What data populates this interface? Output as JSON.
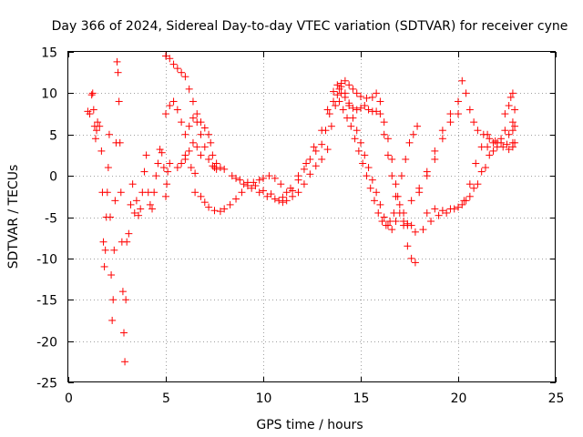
{
  "chart_data": {
    "type": "scatter",
    "title": "Day 366 of 2024, Sidereal Day-to-day VTEC variation (SDTVAR) for receiver cyne",
    "xlabel": "GPS time / hours",
    "ylabel": "SDTVAR / TECUs",
    "xlim": [
      0,
      25
    ],
    "ylim": [
      -25,
      15
    ],
    "x_ticks": [
      0,
      5,
      10,
      15,
      20,
      25
    ],
    "y_ticks": [
      15,
      10,
      5,
      0,
      -5,
      -10,
      -15,
      -20,
      -25
    ],
    "grid": true,
    "marker": "+",
    "series": [
      {
        "name": "SDTVAR",
        "color": "#ff0000",
        "points": [
          [
            1.0,
            7.8
          ],
          [
            1.1,
            7.5
          ],
          [
            1.2,
            9.8
          ],
          [
            1.25,
            10.0
          ],
          [
            1.3,
            8.0
          ],
          [
            1.35,
            6.0
          ],
          [
            1.4,
            4.5
          ],
          [
            1.45,
            5.5
          ],
          [
            1.5,
            6.5
          ],
          [
            1.6,
            6.0
          ],
          [
            1.7,
            3.0
          ],
          [
            1.75,
            -2.0
          ],
          [
            1.8,
            -8.0
          ],
          [
            1.85,
            -11.0
          ],
          [
            1.9,
            -9.0
          ],
          [
            1.95,
            -5.0
          ],
          [
            2.0,
            -2.0
          ],
          [
            2.05,
            1.0
          ],
          [
            2.1,
            5.0
          ],
          [
            2.15,
            -5.0
          ],
          [
            2.2,
            -12.0
          ],
          [
            2.25,
            -17.5
          ],
          [
            2.3,
            -15.0
          ],
          [
            2.35,
            -9.0
          ],
          [
            2.4,
            -3.0
          ],
          [
            2.45,
            4.0
          ],
          [
            2.5,
            13.8
          ],
          [
            2.55,
            12.5
          ],
          [
            2.6,
            9.0
          ],
          [
            2.65,
            4.0
          ],
          [
            2.7,
            -2.0
          ],
          [
            2.75,
            -8.0
          ],
          [
            2.8,
            -14.0
          ],
          [
            2.85,
            -19.0
          ],
          [
            2.9,
            -22.5
          ],
          [
            2.95,
            -15.0
          ],
          [
            3.0,
            -8.0
          ],
          [
            3.1,
            -7.0
          ],
          [
            3.2,
            -3.5
          ],
          [
            3.3,
            -1.0
          ],
          [
            3.4,
            -4.5
          ],
          [
            3.5,
            -3.0
          ],
          [
            3.6,
            -4.8
          ],
          [
            3.7,
            -4.0
          ],
          [
            3.8,
            -2.0
          ],
          [
            3.9,
            0.5
          ],
          [
            4.0,
            2.5
          ],
          [
            4.1,
            -2.0
          ],
          [
            4.2,
            -3.5
          ],
          [
            4.3,
            -4.0
          ],
          [
            4.4,
            -2.0
          ],
          [
            4.5,
            0.0
          ],
          [
            4.6,
            1.5
          ],
          [
            4.7,
            3.2
          ],
          [
            4.8,
            2.8
          ],
          [
            4.9,
            1.0
          ],
          [
            5.0,
            -2.5
          ],
          [
            5.05,
            -1.0
          ],
          [
            5.1,
            0.5
          ],
          [
            5.2,
            1.5
          ],
          [
            5.0,
            14.5
          ],
          [
            5.2,
            14.2
          ],
          [
            5.4,
            13.5
          ],
          [
            5.6,
            13.0
          ],
          [
            5.8,
            12.5
          ],
          [
            6.0,
            12.0
          ],
          [
            6.2,
            10.5
          ],
          [
            6.4,
            9.0
          ],
          [
            6.6,
            7.5
          ],
          [
            6.8,
            6.5
          ],
          [
            7.0,
            5.8
          ],
          [
            7.2,
            5.0
          ],
          [
            7.3,
            4.0
          ],
          [
            7.4,
            2.5
          ],
          [
            7.5,
            1.0
          ],
          [
            5.0,
            7.5
          ],
          [
            5.2,
            8.5
          ],
          [
            5.4,
            9.0
          ],
          [
            5.6,
            8.0
          ],
          [
            5.8,
            6.5
          ],
          [
            6.0,
            5.0
          ],
          [
            6.2,
            6.0
          ],
          [
            6.4,
            7.0
          ],
          [
            6.6,
            6.5
          ],
          [
            6.8,
            5.0
          ],
          [
            7.0,
            3.5
          ],
          [
            7.2,
            2.0
          ],
          [
            7.4,
            1.2
          ],
          [
            7.6,
            0.8
          ],
          [
            7.8,
            1.0
          ],
          [
            6.0,
            2.5
          ],
          [
            6.2,
            3.0
          ],
          [
            6.4,
            4.0
          ],
          [
            6.6,
            3.5
          ],
          [
            6.8,
            2.5
          ],
          [
            5.6,
            1.0
          ],
          [
            5.8,
            1.5
          ],
          [
            6.0,
            2.0
          ],
          [
            6.3,
            1.0
          ],
          [
            6.5,
            0.3
          ],
          [
            6.5,
            -2.0
          ],
          [
            6.8,
            -2.5
          ],
          [
            7.0,
            -3.2
          ],
          [
            7.2,
            -3.8
          ],
          [
            7.5,
            -4.2
          ],
          [
            7.8,
            -4.3
          ],
          [
            8.0,
            -4.0
          ],
          [
            8.3,
            -3.5
          ],
          [
            8.6,
            -2.8
          ],
          [
            8.9,
            -2.0
          ],
          [
            9.2,
            -1.2
          ],
          [
            9.5,
            -0.8
          ],
          [
            9.8,
            -0.5
          ],
          [
            10.0,
            -0.3
          ],
          [
            10.3,
            0.0
          ],
          [
            10.6,
            -0.3
          ],
          [
            10.9,
            -1.0
          ],
          [
            11.2,
            -2.0
          ],
          [
            11.5,
            -2.5
          ],
          [
            11.8,
            -2.0
          ],
          [
            12.1,
            -1.0
          ],
          [
            12.4,
            0.2
          ],
          [
            12.7,
            1.2
          ],
          [
            13.0,
            2.0
          ],
          [
            13.3,
            3.2
          ],
          [
            13.5,
            6.0
          ],
          [
            13.7,
            8.5
          ],
          [
            13.9,
            10.5
          ],
          [
            14.0,
            11.2
          ],
          [
            14.2,
            11.5
          ],
          [
            14.4,
            11.0
          ],
          [
            14.6,
            10.5
          ],
          [
            14.8,
            10.0
          ],
          [
            15.0,
            9.6
          ],
          [
            15.3,
            9.4
          ],
          [
            15.6,
            9.5
          ],
          [
            15.8,
            10.0
          ],
          [
            16.0,
            9.0
          ],
          [
            16.2,
            6.5
          ],
          [
            16.4,
            4.5
          ],
          [
            16.6,
            2.0
          ],
          [
            16.8,
            -1.0
          ],
          [
            17.0,
            -3.5
          ],
          [
            17.2,
            -6.0
          ],
          [
            17.4,
            -8.5
          ],
          [
            17.6,
            -10.0
          ],
          [
            17.8,
            -10.5
          ],
          [
            7.6,
            1.5
          ],
          [
            8.0,
            0.8
          ],
          [
            8.4,
            0.0
          ],
          [
            8.8,
            -0.5
          ],
          [
            9.2,
            -0.8
          ],
          [
            9.6,
            -1.2
          ],
          [
            10.0,
            -1.8
          ],
          [
            10.4,
            -2.2
          ],
          [
            10.8,
            -3.0
          ],
          [
            11.0,
            -3.2
          ],
          [
            11.2,
            -3.0
          ],
          [
            11.5,
            -1.8
          ],
          [
            11.8,
            -0.5
          ],
          [
            12.1,
            0.8
          ],
          [
            12.4,
            2.0
          ],
          [
            12.7,
            3.0
          ],
          [
            13.0,
            3.8
          ],
          [
            13.2,
            5.5
          ],
          [
            13.4,
            7.5
          ],
          [
            13.6,
            9.0
          ],
          [
            13.8,
            9.8
          ],
          [
            14.0,
            10.0
          ],
          [
            14.2,
            9.5
          ],
          [
            14.4,
            8.8
          ],
          [
            14.6,
            8.2
          ],
          [
            14.8,
            8.0
          ],
          [
            15.0,
            8.2
          ],
          [
            15.2,
            8.5
          ],
          [
            15.4,
            8.0
          ],
          [
            15.6,
            7.8
          ],
          [
            15.8,
            7.8
          ],
          [
            16.0,
            7.5
          ],
          [
            16.2,
            5.0
          ],
          [
            16.4,
            2.5
          ],
          [
            16.6,
            0.0
          ],
          [
            16.8,
            -2.5
          ],
          [
            17.0,
            -4.5
          ],
          [
            17.2,
            -5.5
          ],
          [
            17.4,
            -5.8
          ],
          [
            17.6,
            -6.0
          ],
          [
            8.6,
            -0.3
          ],
          [
            9.0,
            -1.0
          ],
          [
            9.4,
            -1.5
          ],
          [
            9.8,
            -2.0
          ],
          [
            10.2,
            -2.5
          ],
          [
            10.6,
            -2.8
          ],
          [
            11.0,
            -2.6
          ],
          [
            11.4,
            -1.5
          ],
          [
            11.8,
            0.0
          ],
          [
            12.2,
            1.5
          ],
          [
            12.6,
            3.5
          ],
          [
            13.0,
            5.5
          ],
          [
            13.3,
            8.0
          ],
          [
            13.6,
            10.2
          ],
          [
            13.8,
            11.0
          ],
          [
            14.0,
            10.8
          ],
          [
            14.2,
            10.0
          ],
          [
            14.4,
            8.5
          ],
          [
            14.6,
            7.0
          ],
          [
            14.8,
            5.5
          ],
          [
            15.0,
            4.0
          ],
          [
            15.2,
            2.5
          ],
          [
            15.4,
            1.0
          ],
          [
            15.6,
            -0.5
          ],
          [
            15.8,
            -2.0
          ],
          [
            16.0,
            -3.5
          ],
          [
            16.2,
            -5.0
          ],
          [
            16.4,
            -6.0
          ],
          [
            16.6,
            -6.5
          ],
          [
            13.9,
            9.0
          ],
          [
            14.1,
            8.0
          ],
          [
            14.3,
            7.0
          ],
          [
            14.5,
            6.0
          ],
          [
            14.7,
            4.5
          ],
          [
            14.9,
            3.0
          ],
          [
            15.1,
            1.5
          ],
          [
            15.3,
            0.0
          ],
          [
            15.5,
            -1.5
          ],
          [
            15.7,
            -3.0
          ],
          [
            15.9,
            -4.5
          ],
          [
            16.1,
            -5.5
          ],
          [
            16.3,
            -6.0
          ],
          [
            16.5,
            -5.5
          ],
          [
            16.7,
            -4.5
          ],
          [
            16.9,
            -2.5
          ],
          [
            17.1,
            0.0
          ],
          [
            17.3,
            2.0
          ],
          [
            17.5,
            4.0
          ],
          [
            17.7,
            5.0
          ],
          [
            17.9,
            6.0
          ],
          [
            16.8,
            -5.5
          ],
          [
            17.2,
            -4.5
          ],
          [
            17.6,
            -3.0
          ],
          [
            18.0,
            -1.5
          ],
          [
            18.4,
            0.5
          ],
          [
            18.8,
            3.0
          ],
          [
            19.2,
            5.5
          ],
          [
            19.6,
            7.5
          ],
          [
            20.0,
            9.0
          ],
          [
            20.2,
            11.5
          ],
          [
            20.4,
            10.0
          ],
          [
            20.6,
            8.0
          ],
          [
            20.8,
            6.5
          ],
          [
            21.0,
            5.5
          ],
          [
            21.3,
            5.0
          ],
          [
            21.6,
            4.5
          ],
          [
            21.9,
            4.2
          ],
          [
            22.2,
            4.0
          ],
          [
            22.5,
            3.8
          ],
          [
            22.8,
            4.0
          ],
          [
            17.4,
            -6.0
          ],
          [
            17.8,
            -6.8
          ],
          [
            18.2,
            -6.5
          ],
          [
            18.6,
            -5.5
          ],
          [
            19.0,
            -4.8
          ],
          [
            19.4,
            -4.5
          ],
          [
            19.8,
            -4.0
          ],
          [
            20.2,
            -3.5
          ],
          [
            20.6,
            -2.5
          ],
          [
            21.0,
            -1.0
          ],
          [
            21.4,
            1.0
          ],
          [
            21.8,
            3.0
          ],
          [
            22.2,
            4.5
          ],
          [
            22.6,
            5.0
          ],
          [
            22.8,
            5.5
          ],
          [
            18.0,
            -2.0
          ],
          [
            18.4,
            0.0
          ],
          [
            18.8,
            2.0
          ],
          [
            19.2,
            4.5
          ],
          [
            19.6,
            6.5
          ],
          [
            20.0,
            7.5
          ],
          [
            18.4,
            -4.5
          ],
          [
            18.8,
            -4.0
          ],
          [
            19.2,
            -4.2
          ],
          [
            19.6,
            -4.0
          ],
          [
            20.0,
            -3.8
          ],
          [
            20.4,
            -3.0
          ],
          [
            20.8,
            -1.5
          ],
          [
            21.2,
            0.5
          ],
          [
            21.6,
            2.5
          ],
          [
            22.0,
            4.0
          ],
          [
            22.4,
            5.5
          ],
          [
            22.8,
            6.5
          ],
          [
            22.4,
            7.5
          ],
          [
            22.6,
            8.5
          ],
          [
            22.7,
            9.5
          ],
          [
            22.8,
            10.0
          ],
          [
            22.9,
            8.0
          ],
          [
            22.9,
            6.0
          ],
          [
            22.9,
            4.0
          ],
          [
            21.5,
            3.5
          ],
          [
            21.8,
            4.0
          ],
          [
            22.0,
            3.5
          ],
          [
            22.3,
            3.5
          ],
          [
            22.6,
            3.2
          ],
          [
            22.8,
            3.5
          ],
          [
            20.3,
            -3.0
          ],
          [
            20.6,
            -1.0
          ],
          [
            20.9,
            1.5
          ],
          [
            21.2,
            3.5
          ],
          [
            21.5,
            5.0
          ]
        ]
      }
    ]
  }
}
